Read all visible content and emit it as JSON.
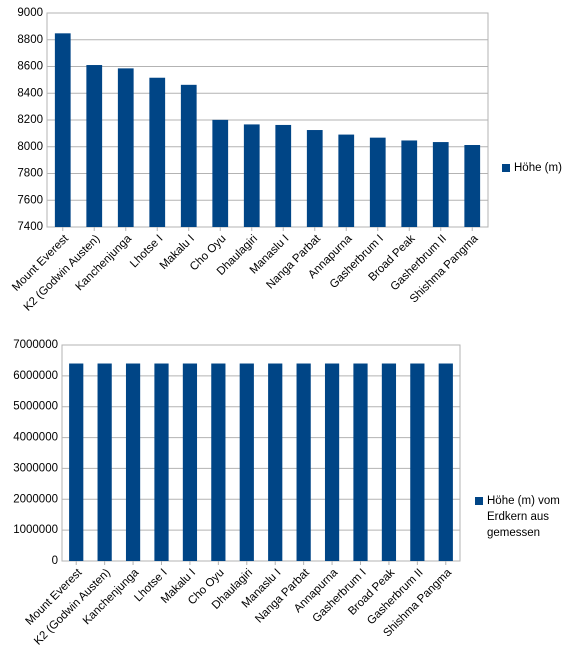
{
  "chart_data": [
    {
      "type": "bar",
      "categories": [
        "Mount Everest",
        "K2 (Godwin Austen)",
        "Kanchenjunga",
        "Lhotse I",
        "Makalu I",
        "Cho Oyu",
        "Dhaulagiri",
        "Manaslu I",
        "Nanga Parbat",
        "Annapurna",
        "Gasherbrum I",
        "Broad Peak",
        "Gasherbrum II",
        "Shishma Pangma"
      ],
      "series": [
        {
          "name": "Höhe (m)",
          "color": "#004586",
          "values": [
            8848,
            8611,
            8586,
            8516,
            8463,
            8201,
            8167,
            8163,
            8125,
            8091,
            8068,
            8047,
            8035,
            8013
          ]
        }
      ],
      "ylim": [
        7400,
        9000
      ],
      "yticks": [
        7400,
        7600,
        7800,
        8000,
        8200,
        8400,
        8600,
        8800,
        9000
      ],
      "grid": true
    },
    {
      "type": "bar",
      "categories": [
        "Mount Everest",
        "K2 (Godwin Austen)",
        "Kanchenjunga",
        "Lhotse I",
        "Makalu I",
        "Cho Oyu",
        "Dhaulagiri",
        "Manaslu I",
        "Nanga Parbat",
        "Annapurna",
        "Gasherbrum I",
        "Broad Peak",
        "Gasherbrum II",
        "Shishma Pangma"
      ],
      "series": [
        {
          "name": "Höhe (m) vom Erdkern aus gemessen",
          "color": "#004586",
          "values": [
            6400000,
            6400000,
            6400000,
            6400000,
            6400000,
            6400000,
            6400000,
            6400000,
            6400000,
            6400000,
            6400000,
            6400000,
            6400000,
            6400000
          ]
        }
      ],
      "ylim": [
        0,
        7000000
      ],
      "yticks": [
        0,
        1000000,
        2000000,
        3000000,
        4000000,
        5000000,
        6000000,
        7000000
      ],
      "grid": true
    }
  ]
}
